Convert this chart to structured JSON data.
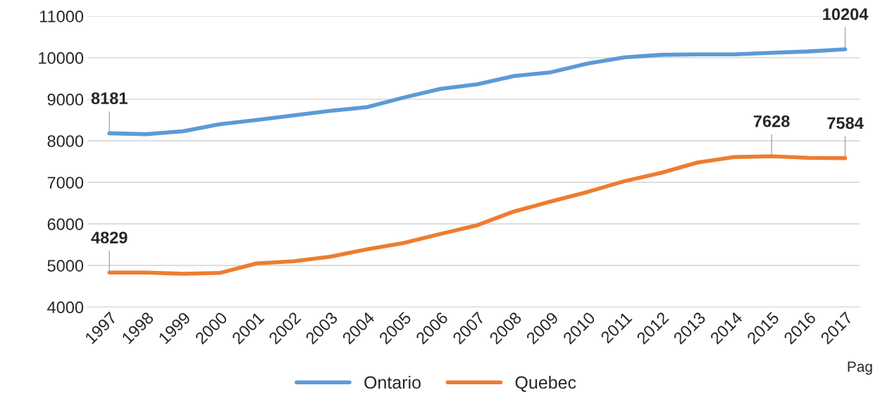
{
  "chart_data": {
    "type": "line",
    "categories": [
      "1997",
      "1998",
      "1999",
      "2000",
      "2001",
      "2002",
      "2003",
      "2004",
      "2005",
      "2006",
      "2007",
      "2008",
      "2009",
      "2010",
      "2011",
      "2012",
      "2013",
      "2014",
      "2015",
      "2016",
      "2017"
    ],
    "series": [
      {
        "name": "Ontario",
        "color": "#5b9bd5",
        "values": [
          8181,
          8160,
          8230,
          8400,
          8500,
          8610,
          8720,
          8810,
          9040,
          9250,
          9360,
          9560,
          9650,
          9860,
          10010,
          10070,
          10080,
          10080,
          10120,
          10150,
          10204
        ],
        "value_labels": [
          "8181",
          null,
          null,
          null,
          null,
          null,
          null,
          null,
          null,
          null,
          null,
          null,
          null,
          null,
          null,
          null,
          null,
          null,
          null,
          null,
          "10204"
        ]
      },
      {
        "name": "Quebec",
        "color": "#ed7d31",
        "values": [
          4829,
          4830,
          4800,
          4820,
          5050,
          5100,
          5210,
          5390,
          5540,
          5760,
          5970,
          6300,
          6540,
          6770,
          7030,
          7230,
          7480,
          7610,
          7628,
          7590,
          7584
        ],
        "value_labels": [
          "4829",
          null,
          null,
          null,
          null,
          null,
          null,
          null,
          null,
          null,
          null,
          null,
          null,
          null,
          null,
          null,
          null,
          null,
          "7628",
          null,
          "7584"
        ]
      }
    ],
    "ylim": [
      4000,
      11000
    ],
    "yticks": [
      4000,
      5000,
      6000,
      7000,
      8000,
      9000,
      10000,
      11000
    ],
    "grid": "y",
    "legend": "bottom",
    "marker": "none",
    "line_style": "solid",
    "annotations": [
      "Pag"
    ]
  }
}
